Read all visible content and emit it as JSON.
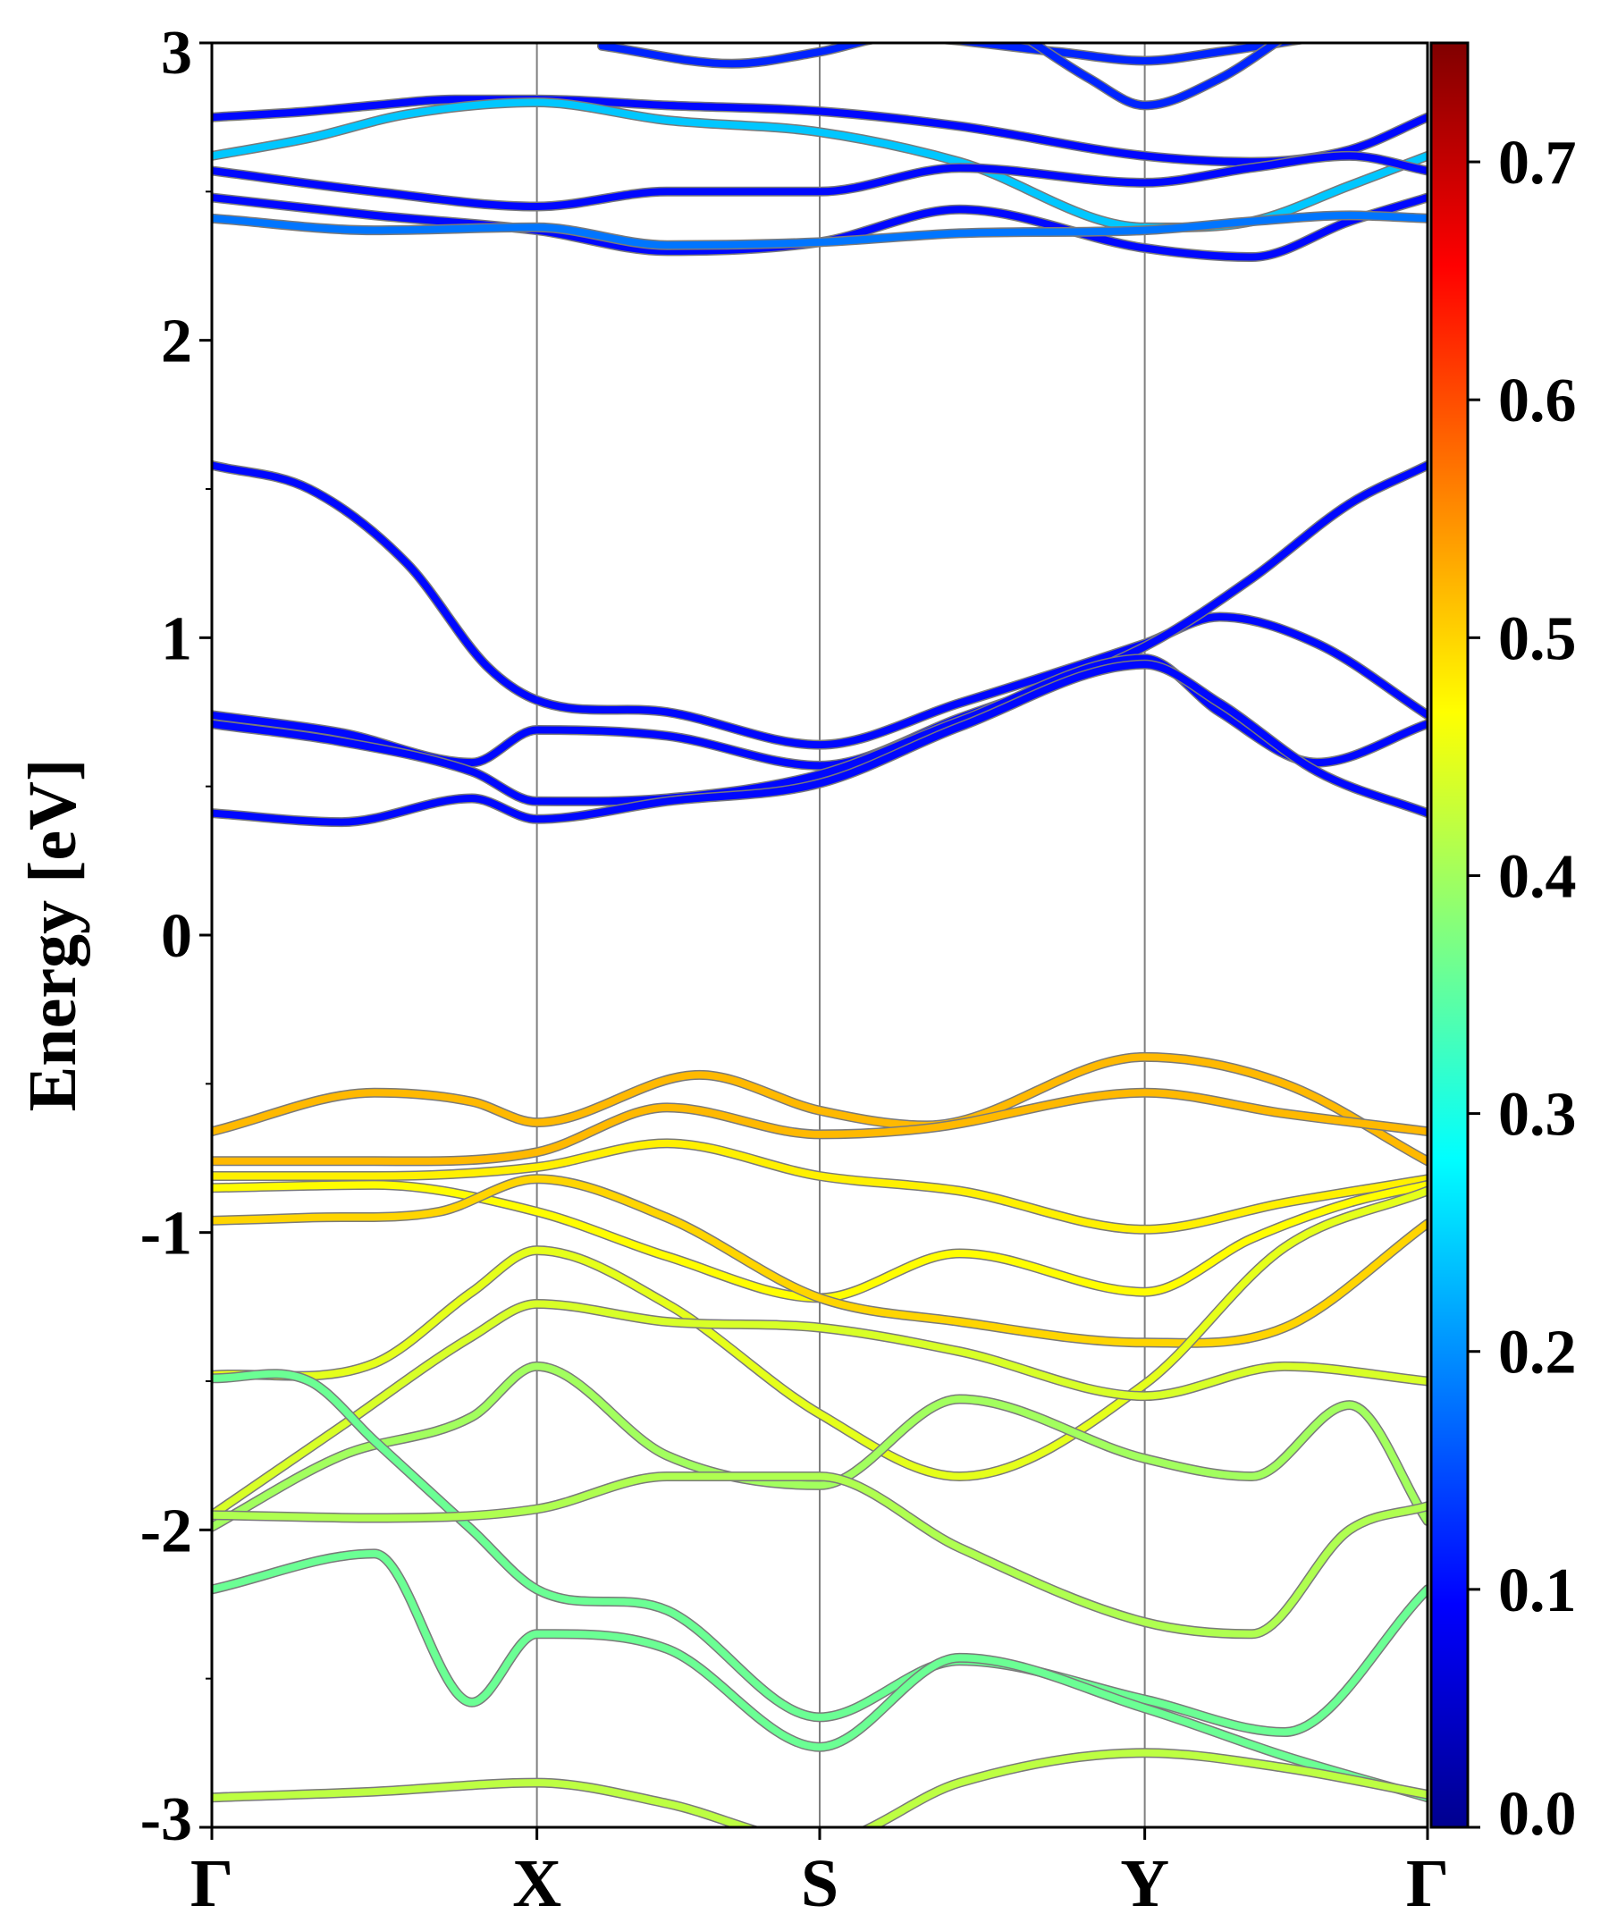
{
  "chart_data": {
    "type": "line",
    "ylabel": "Energy [eV]",
    "ylim": [
      -3,
      3
    ],
    "yticks": [
      "-3",
      "-2",
      "-1",
      "0",
      "1",
      "2",
      "3"
    ],
    "kpoint_labels": [
      "Γ",
      "X",
      "S",
      "Y",
      "Γ"
    ],
    "kpath": [
      0,
      1,
      1.87,
      2.87,
      3.74
    ],
    "vertical_gridlines": true,
    "colorbar": {
      "colormap": "jet",
      "range": [
        0.0,
        0.75
      ],
      "tick_labels": [
        "0.0",
        "0.1",
        "0.2",
        "0.3",
        "0.4",
        "0.5",
        "0.6",
        "0.7"
      ]
    },
    "series": [
      {
        "band": "c1",
        "weight": 0.1,
        "x": [
          0,
          0.3,
          0.5,
          0.75,
          1,
          1.4,
          1.87,
          2.3,
          2.87,
          3.2,
          3.5,
          3.74
        ],
        "y": [
          2.75,
          2.77,
          2.79,
          2.81,
          2.81,
          2.79,
          2.77,
          2.72,
          2.62,
          2.6,
          2.64,
          2.75
        ]
      },
      {
        "band": "c2",
        "weight": 0.24,
        "x": [
          0,
          0.3,
          0.6,
          1,
          1.4,
          1.87,
          2.3,
          2.87,
          3.2,
          3.5,
          3.74
        ],
        "y": [
          2.62,
          2.68,
          2.76,
          2.8,
          2.74,
          2.7,
          2.6,
          2.38,
          2.4,
          2.52,
          2.62
        ]
      },
      {
        "band": "c3",
        "weight": 0.1,
        "x": [
          0,
          0.5,
          1,
          1.4,
          1.87,
          2.3,
          2.87,
          3.2,
          3.5,
          3.74
        ],
        "y": [
          2.57,
          2.5,
          2.45,
          2.5,
          2.5,
          2.58,
          2.53,
          2.58,
          2.62,
          2.57
        ]
      },
      {
        "band": "c4",
        "weight": 0.1,
        "x": [
          0,
          0.5,
          1,
          1.4,
          1.87,
          2.3,
          2.87,
          3.2,
          3.5,
          3.74
        ],
        "y": [
          2.48,
          2.42,
          2.37,
          2.3,
          2.33,
          2.44,
          2.31,
          2.28,
          2.4,
          2.48
        ]
      },
      {
        "band": "c5",
        "weight": 0.18,
        "x": [
          0,
          0.5,
          1,
          1.4,
          1.87,
          2.3,
          2.87,
          3.2,
          3.5,
          3.74
        ],
        "y": [
          2.41,
          2.37,
          2.38,
          2.32,
          2.33,
          2.36,
          2.37,
          2.4,
          2.42,
          2.41
        ]
      },
      {
        "band": "c6",
        "weight": 0.12,
        "x": [
          1.2,
          1.6,
          1.87,
          2.1,
          2.6,
          2.87,
          3.1,
          3.4
        ],
        "y": [
          2.99,
          2.93,
          2.97,
          3.02,
          2.97,
          2.94,
          2.97,
          3.02
        ]
      },
      {
        "band": "c7",
        "weight": 0.12,
        "x": [
          2.5,
          2.7,
          2.87,
          3.1,
          3.3
        ],
        "y": [
          3.02,
          2.88,
          2.79,
          2.88,
          3.02
        ]
      },
      {
        "band": "cb1",
        "weight": 0.1,
        "x": [
          0,
          0.3,
          0.6,
          0.85,
          1,
          1.4,
          1.87,
          2.3,
          2.87,
          3.1,
          3.4,
          3.74
        ],
        "y": [
          1.58,
          1.5,
          1.25,
          0.9,
          0.79,
          0.75,
          0.64,
          0.78,
          0.98,
          1.07,
          0.98,
          0.74
        ]
      },
      {
        "band": "cb2",
        "weight": 0.1,
        "x": [
          0,
          0.4,
          0.8,
          1,
          1.4,
          1.87,
          2.3,
          2.87,
          3.2,
          3.5,
          3.74
        ],
        "y": [
          0.74,
          0.68,
          0.58,
          0.69,
          0.67,
          0.57,
          0.73,
          0.97,
          1.2,
          1.45,
          1.58
        ]
      },
      {
        "band": "cb3",
        "weight": 0.1,
        "x": [
          0,
          0.4,
          0.8,
          1,
          1.4,
          1.87,
          2.3,
          2.87,
          3.1,
          3.4,
          3.74
        ],
        "y": [
          0.71,
          0.65,
          0.55,
          0.45,
          0.46,
          0.54,
          0.72,
          0.93,
          0.75,
          0.58,
          0.71
        ]
      },
      {
        "band": "cb4",
        "weight": 0.1,
        "x": [
          0,
          0.4,
          0.8,
          1,
          1.4,
          1.87,
          2.3,
          2.87,
          3.1,
          3.4,
          3.74
        ],
        "y": [
          0.41,
          0.38,
          0.46,
          0.39,
          0.45,
          0.51,
          0.7,
          0.91,
          0.78,
          0.55,
          0.41
        ]
      },
      {
        "band": "v1",
        "weight": 0.52,
        "x": [
          0,
          0.5,
          0.8,
          1,
          1.5,
          1.87,
          2.2,
          2.87,
          3.3,
          3.74
        ],
        "y": [
          -0.66,
          -0.53,
          -0.56,
          -0.63,
          -0.47,
          -0.59,
          -0.64,
          -0.41,
          -0.5,
          -0.76
        ]
      },
      {
        "band": "v2",
        "weight": 0.52,
        "x": [
          0,
          0.5,
          1,
          1.4,
          1.87,
          2.2,
          2.87,
          3.3,
          3.74
        ],
        "y": [
          -0.76,
          -0.76,
          -0.73,
          -0.58,
          -0.67,
          -0.65,
          -0.53,
          -0.6,
          -0.66
        ]
      },
      {
        "band": "v3",
        "weight": 0.48,
        "x": [
          0,
          0.5,
          1,
          1.4,
          1.87,
          2.3,
          2.87,
          3.3,
          3.74
        ],
        "y": [
          -0.81,
          -0.81,
          -0.78,
          -0.7,
          -0.81,
          -0.86,
          -0.99,
          -0.9,
          -0.82
        ]
      },
      {
        "band": "v4",
        "weight": 0.47,
        "x": [
          0,
          0.5,
          1,
          1.4,
          1.87,
          2.3,
          2.87,
          3.2,
          3.5,
          3.74
        ],
        "y": [
          -0.85,
          -0.84,
          -0.93,
          -1.08,
          -1.22,
          -1.07,
          -1.2,
          -1.02,
          -0.9,
          -0.84
        ]
      },
      {
        "band": "v5",
        "weight": 0.5,
        "x": [
          0,
          0.3,
          0.7,
          1,
          1.4,
          1.87,
          2.3,
          2.87,
          3.3,
          3.74
        ],
        "y": [
          -0.96,
          -0.95,
          -0.93,
          -0.82,
          -0.95,
          -1.22,
          -1.3,
          -1.37,
          -1.32,
          -0.97
        ]
      },
      {
        "band": "v6",
        "weight": 0.45,
        "x": [
          0,
          0.5,
          0.8,
          1,
          1.4,
          1.87,
          2.3,
          2.87,
          3.3,
          3.74
        ],
        "y": [
          -1.48,
          -1.44,
          -1.2,
          -1.06,
          -1.24,
          -1.61,
          -1.82,
          -1.51,
          -1.05,
          -0.86
        ]
      },
      {
        "band": "v7",
        "weight": 0.44,
        "x": [
          0,
          0.4,
          0.8,
          1,
          1.4,
          1.87,
          2.3,
          2.87,
          3.3,
          3.74
        ],
        "y": [
          -1.95,
          -1.65,
          -1.35,
          -1.24,
          -1.3,
          -1.32,
          -1.4,
          -1.55,
          -1.45,
          -1.5
        ]
      },
      {
        "band": "v8",
        "weight": 0.4,
        "x": [
          0,
          0.4,
          0.8,
          1,
          1.4,
          1.87,
          2.3,
          2.87,
          3.2,
          3.5,
          3.74
        ],
        "y": [
          -1.99,
          -1.75,
          -1.62,
          -1.45,
          -1.75,
          -1.85,
          -1.56,
          -1.76,
          -1.82,
          -1.58,
          -1.97
        ]
      },
      {
        "band": "v9",
        "weight": 0.36,
        "x": [
          0,
          0.3,
          0.5,
          0.8,
          1,
          1.4,
          1.87,
          2.3,
          2.87,
          3.3,
          3.74
        ],
        "y": [
          -1.49,
          -1.5,
          -1.7,
          -2.0,
          -2.2,
          -2.27,
          -2.63,
          -2.44,
          -2.57,
          -2.68,
          -2.2
        ]
      },
      {
        "band": "v10",
        "weight": 0.41,
        "x": [
          0,
          0.5,
          1,
          1.4,
          1.87,
          2.3,
          2.87,
          3.2,
          3.5,
          3.74
        ],
        "y": [
          -1.95,
          -1.96,
          -1.93,
          -1.82,
          -1.82,
          -2.06,
          -2.31,
          -2.35,
          -2.0,
          -1.92
        ]
      },
      {
        "band": "v11",
        "weight": 0.36,
        "x": [
          0,
          0.5,
          0.8,
          1,
          1.4,
          1.87,
          2.3,
          2.87,
          3.3,
          3.74
        ],
        "y": [
          -2.2,
          -2.08,
          -2.58,
          -2.35,
          -2.4,
          -2.73,
          -2.43,
          -2.6,
          -2.76,
          -2.9
        ]
      },
      {
        "band": "v12",
        "weight": 0.42,
        "x": [
          0,
          0.5,
          1,
          1.4,
          1.87,
          2.3,
          2.87,
          3.3,
          3.74
        ],
        "y": [
          -2.9,
          -2.88,
          -2.85,
          -2.92,
          -3.05,
          -2.85,
          -2.75,
          -2.8,
          -2.89
        ]
      }
    ]
  }
}
